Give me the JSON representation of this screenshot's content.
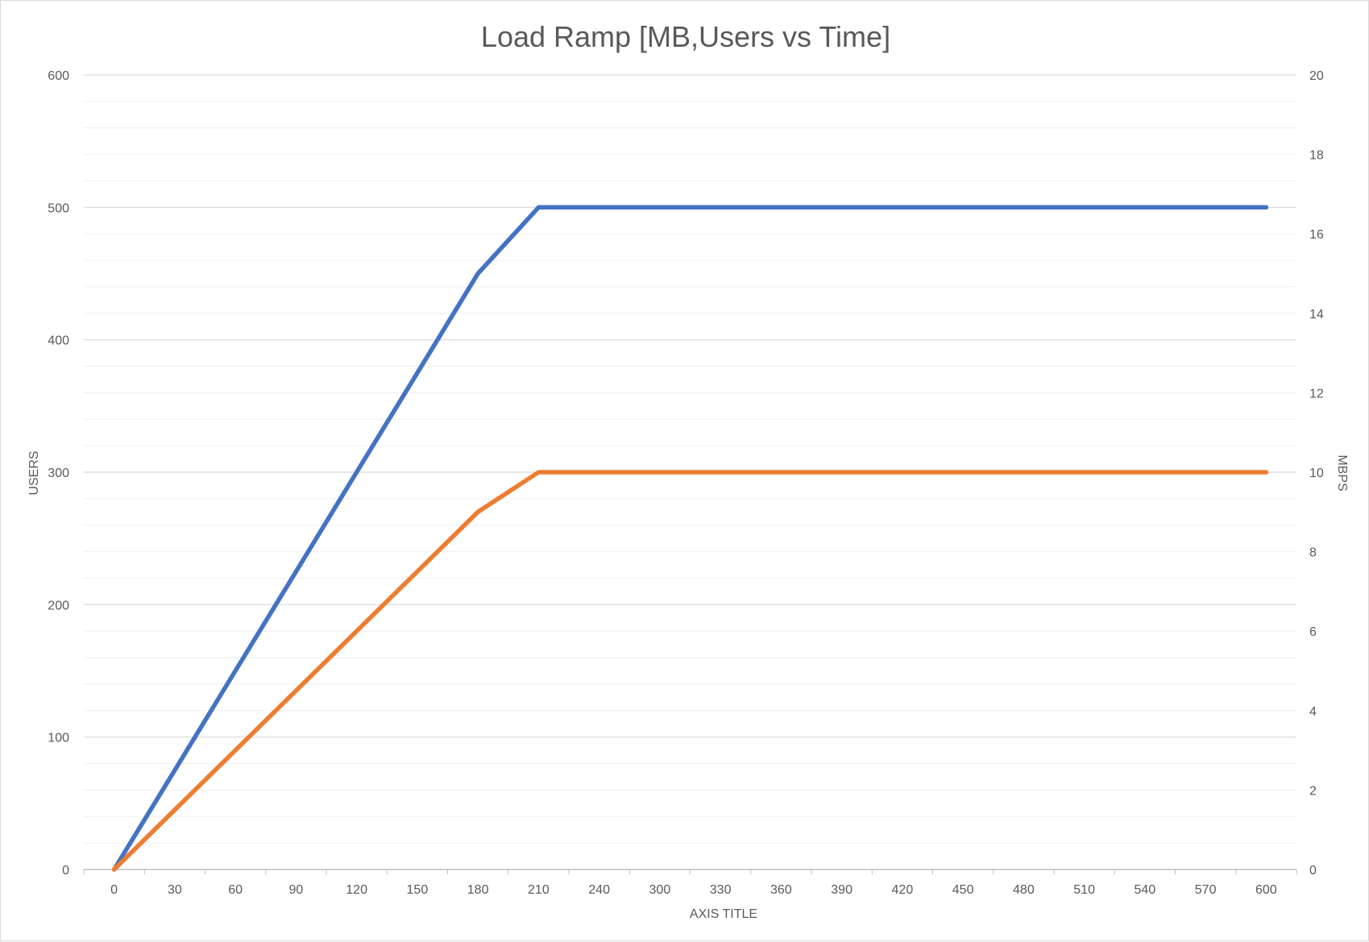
{
  "chart_data": {
    "type": "line",
    "title": "Load Ramp [MB,Users vs Time]",
    "xlabel": "AXIS TITLE",
    "ylabel": "USERS",
    "y2label": "MBPS",
    "categories": [
      "0",
      "30",
      "60",
      "90",
      "120",
      "150",
      "180",
      "210",
      "240",
      "300",
      "330",
      "360",
      "390",
      "420",
      "450",
      "480",
      "510",
      "540",
      "570",
      "600"
    ],
    "ylim": [
      0,
      600
    ],
    "y_ticks": [
      "0",
      "100",
      "200",
      "300",
      "400",
      "500",
      "600"
    ],
    "y2lim": [
      0,
      20
    ],
    "y2_ticks": [
      "0",
      "2",
      "4",
      "6",
      "8",
      "10",
      "12",
      "14",
      "16",
      "18",
      "20"
    ],
    "grid": true,
    "legend": "none",
    "series": [
      {
        "axis": "left",
        "color": "#4472C4",
        "values": [
          0,
          75,
          150,
          225,
          300,
          375,
          450,
          500,
          500,
          500,
          500,
          500,
          500,
          500,
          500,
          500,
          500,
          500,
          500,
          500
        ]
      },
      {
        "axis": "right",
        "color": "#ED7D31",
        "values": [
          0,
          1.5,
          3,
          4.5,
          6,
          7.5,
          9,
          10,
          10,
          10,
          10,
          10,
          10,
          10,
          10,
          10,
          10,
          10,
          10,
          10
        ]
      }
    ]
  }
}
